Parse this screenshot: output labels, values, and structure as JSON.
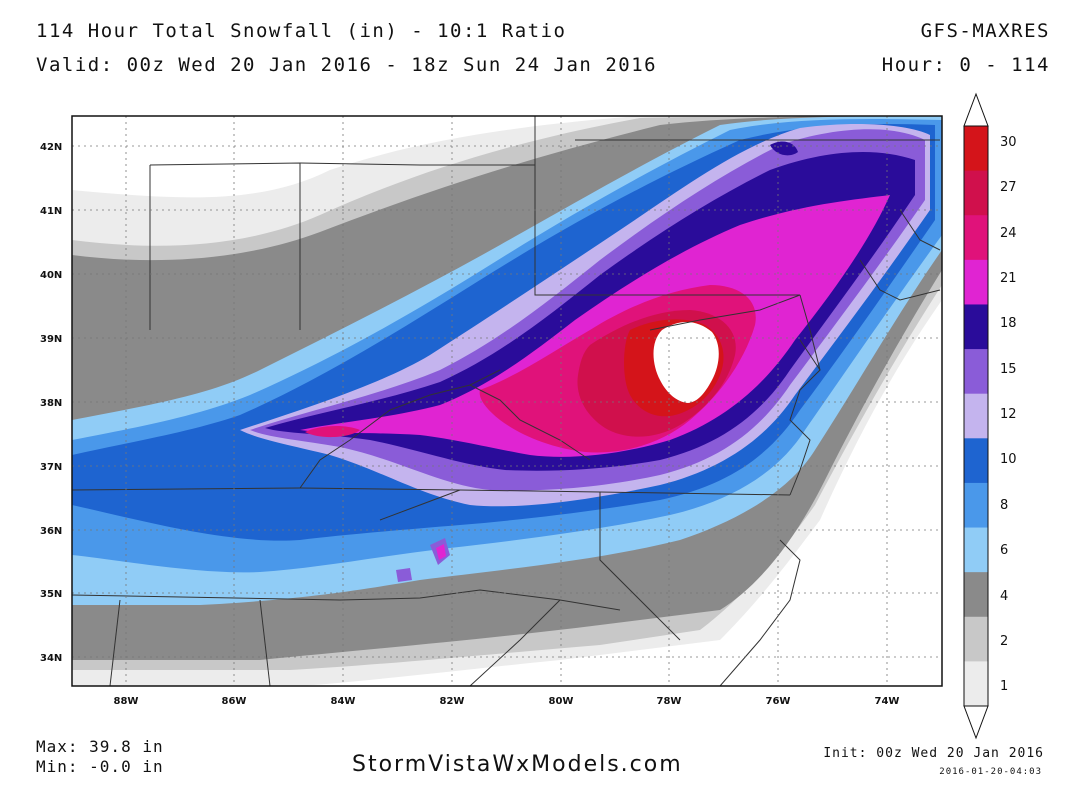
{
  "header": {
    "title": "114 Hour Total Snowfall (in) - 10:1 Ratio",
    "valid": "Valid: 00z Wed 20 Jan 2016 - 18z Sun 24 Jan 2016",
    "model": "GFS-MAXRES",
    "hours": "Hour: 0 - 114"
  },
  "map": {
    "lat_labels": [
      "42N",
      "41N",
      "40N",
      "39N",
      "38N",
      "37N",
      "36N",
      "35N",
      "34N"
    ],
    "lon_labels": [
      "88W",
      "86W",
      "84W",
      "82W",
      "80W",
      "78W",
      "76W",
      "74W"
    ]
  },
  "colorbar": {
    "labels": [
      "30",
      "27",
      "24",
      "21",
      "18",
      "15",
      "12",
      "10",
      "8",
      "6",
      "4",
      "2",
      "1"
    ],
    "colors": [
      "#d4141a",
      "#d0104c",
      "#e0127a",
      "#e024d2",
      "#2a0c9a",
      "#8a5cd8",
      "#c4b4ee",
      "#1e64d0",
      "#4a98ea",
      "#90ccf6",
      "#8a8a8a",
      "#c8c8c8",
      "#ececec"
    ]
  },
  "footer": {
    "max": "Max: 39.8 in",
    "min": "Min: -0.0 in",
    "site": "StormVistaWxModels.com",
    "init": "Init: 00z Wed 20 Jan 2016",
    "stamp": "2016-01-20-04:03"
  }
}
